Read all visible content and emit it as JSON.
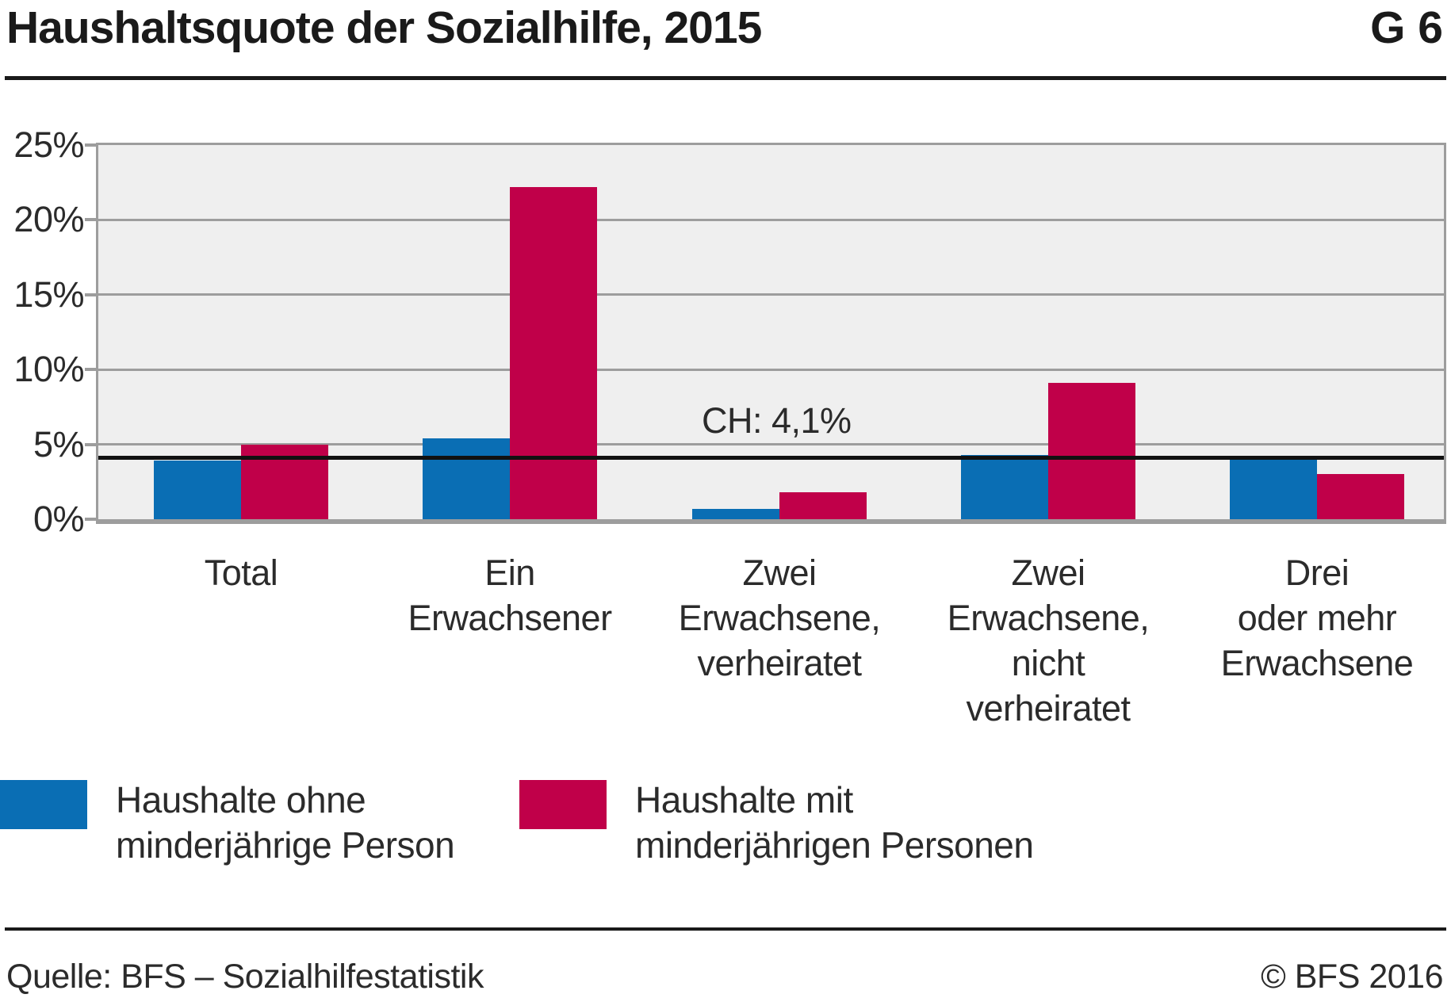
{
  "header": {
    "title": "Haushaltsquote der Sozialhilfe, 2015",
    "figure_code": "G 6"
  },
  "chart_data": {
    "type": "bar",
    "title": "Haushaltsquote der Sozialhilfe, 2015",
    "unit": "%",
    "categories": [
      "Total",
      "Ein\nErwachsener",
      "Zwei\nErwachsene,\nverheiratet",
      "Zwei\nErwachsene,\nnicht\nverheiratet",
      "Drei\noder mehr\nErwachsene"
    ],
    "series": [
      {
        "name": "Haushalte ohne minderjährige Person",
        "color": "#0a6eb4",
        "values": [
          3.9,
          5.4,
          0.7,
          4.3,
          4.0
        ]
      },
      {
        "name": "Haushalte mit minderjährigen Personen",
        "color": "#c00049",
        "values": [
          5.0,
          22.2,
          1.8,
          9.1,
          3.0
        ]
      }
    ],
    "reference_line": {
      "label": "CH: 4,1%",
      "value": 4.1
    },
    "y_axis": {
      "ticks": [
        0,
        5,
        10,
        15,
        20,
        25
      ],
      "tick_labels": [
        "0%",
        "5%",
        "10%",
        "15%",
        "20%",
        "25%"
      ],
      "range": [
        0,
        25
      ]
    },
    "grid": true,
    "legend_position": "bottom-left"
  },
  "legend": {
    "items": [
      {
        "label": "Haushalte ohne\nminderjährige Person",
        "color": "#0a6eb4"
      },
      {
        "label": "Haushalte mit\nminderjährigen Personen",
        "color": "#c00049"
      }
    ]
  },
  "footer": {
    "source": "Quelle: BFS – Sozialhilfestatistik",
    "copyright": "© BFS 2016"
  },
  "colors": {
    "plot_background": "#efefef",
    "gridline": "#9d9d9d",
    "reference_line": "#111111",
    "text": "#2b2b2b"
  }
}
